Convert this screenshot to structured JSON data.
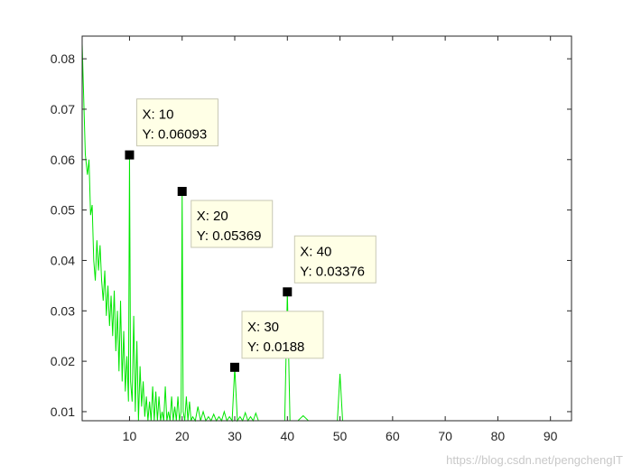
{
  "chart_data": {
    "type": "line",
    "title": "",
    "xlabel": "",
    "ylabel": "",
    "xlim": [
      1,
      94
    ],
    "ylim": [
      0.0082,
      0.0845
    ],
    "x_ticks": [
      10,
      20,
      30,
      40,
      50,
      60,
      70,
      80,
      90
    ],
    "y_ticks": [
      0.01,
      0.02,
      0.03,
      0.04,
      0.05,
      0.06,
      0.07,
      0.08
    ],
    "x_tick_labels": [
      "10",
      "20",
      "30",
      "40",
      "50",
      "60",
      "70",
      "80",
      "90"
    ],
    "y_tick_labels": [
      "0.01",
      "0.02",
      "0.03",
      "0.04",
      "0.05",
      "0.06",
      "0.07",
      "0.08"
    ],
    "grid": false,
    "line_color": "#00e600",
    "series": [
      {
        "x": [
          1,
          1.3,
          1.6,
          2,
          2.3,
          2.6,
          2.9,
          3.2,
          3.5,
          3.8,
          4.1,
          4.4,
          4.7,
          5,
          5.3,
          5.6,
          5.9,
          6.2,
          6.5,
          6.8,
          7.1,
          7.4,
          7.7,
          8,
          8.3,
          8.6,
          8.9,
          9.2,
          9.5,
          9.8,
          10,
          10.2,
          10.5,
          10.8,
          11.1,
          11.4,
          11.7,
          12,
          12.3,
          12.6,
          12.9,
          13.2,
          13.5,
          13.8,
          14.1,
          14.4,
          14.7,
          15,
          15.3,
          15.6,
          15.9,
          16.2,
          16.5,
          16.8,
          17.1,
          17.4,
          17.7,
          18,
          18.3,
          18.6,
          18.9,
          19.2,
          19.5,
          19.8,
          20,
          20.2,
          20.5,
          20.8,
          21.1,
          21.4,
          21.7,
          22,
          22.5,
          23,
          23.5,
          24,
          24.5,
          25,
          25.5,
          26,
          26.5,
          27,
          27.5,
          28,
          28.5,
          29,
          29.5,
          30,
          30.5,
          31,
          31.5,
          32,
          32.5,
          33,
          33.5,
          34,
          34.5,
          35,
          36,
          37,
          38,
          39,
          39.5,
          40,
          40.5,
          41,
          42,
          43,
          44,
          45,
          46,
          47,
          48,
          49,
          49.5,
          50,
          50.5,
          51,
          53,
          55,
          60,
          65,
          70,
          75,
          80,
          85,
          90,
          92
        ],
        "y": [
          0.083,
          0.072,
          0.061,
          0.057,
          0.06,
          0.049,
          0.051,
          0.04,
          0.036,
          0.044,
          0.038,
          0.043,
          0.036,
          0.032,
          0.038,
          0.029,
          0.035,
          0.027,
          0.033,
          0.025,
          0.034,
          0.022,
          0.03,
          0.018,
          0.032,
          0.016,
          0.026,
          0.014,
          0.021,
          0.012,
          0.06093,
          0.016,
          0.012,
          0.029,
          0.01,
          0.024,
          0.008,
          0.019,
          0.011,
          0.016,
          0.009,
          0.013,
          0.008,
          0.012,
          0.008,
          0.015,
          0.008,
          0.014,
          0.008,
          0.013,
          0.008,
          0.01,
          0.008,
          0.015,
          0.008,
          0.01,
          0.008,
          0.013,
          0.008,
          0.011,
          0.008,
          0.013,
          0.008,
          0.01,
          0.05369,
          0.01,
          0.008,
          0.013,
          0.008,
          0.012,
          0.008,
          0.009,
          0.008,
          0.011,
          0.008,
          0.01,
          0.008,
          0.009,
          0.008,
          0.0095,
          0.008,
          0.009,
          0.008,
          0.01,
          0.008,
          0.009,
          0.008,
          0.0188,
          0.008,
          0.009,
          0.008,
          0.0098,
          0.008,
          0.009,
          0.008,
          0.0097,
          0.008,
          0.008,
          0.008,
          0.008,
          0.008,
          0.008,
          0.008,
          0.03376,
          0.008,
          0.008,
          0.008,
          0.0092,
          0.008,
          0.008,
          0.008,
          0.008,
          0.008,
          0.008,
          0.008,
          0.0175,
          0.008,
          0.008,
          0.008,
          0.008,
          0.008,
          0.008,
          0.008,
          0.008,
          0.008,
          0.008,
          0.008,
          0.008
        ]
      }
    ],
    "datatips": [
      {
        "x": 10,
        "y": 0.06093,
        "x_label": "X: 10",
        "y_label": "Y: 0.06093",
        "placement": "upper-right"
      },
      {
        "x": 20,
        "y": 0.05369,
        "x_label": "X: 20",
        "y_label": "Y: 0.05369",
        "placement": "lower-right"
      },
      {
        "x": 30,
        "y": 0.0188,
        "x_label": "X: 30",
        "y_label": "Y: 0.0188",
        "placement": "upper-right"
      },
      {
        "x": 40,
        "y": 0.03376,
        "x_label": "X: 40",
        "y_label": "Y: 0.03376",
        "placement": "upper-right"
      }
    ]
  },
  "watermark": "https://blog.csdn.net/pengchengIT"
}
